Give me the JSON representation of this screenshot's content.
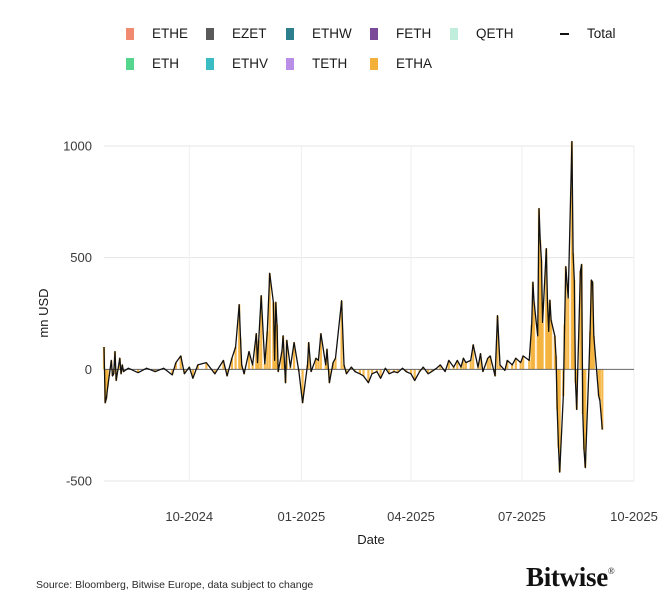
{
  "chart_data": {
    "type": "bar",
    "stacked": true,
    "xlabel": "Date",
    "ylabel": "mn USD",
    "ylim": [
      -500,
      1000
    ],
    "yticks": [
      -500,
      0,
      500,
      1000
    ],
    "ytick_labels": [
      "-500",
      "0",
      "500",
      "1000"
    ],
    "x_range": [
      "2024-07-23",
      "2025-10-01"
    ],
    "xticks": [
      "2024-10-01",
      "2025-01-01",
      "2025-04-01",
      "2025-07-01",
      "2025-10-01"
    ],
    "xtick_labels": [
      "10-2024",
      "01-2025",
      "04-2025",
      "07-2025",
      "10-2025"
    ],
    "grid": true,
    "legend_position": "top",
    "series": [
      {
        "name": "ETHE",
        "color": "#f08a70"
      },
      {
        "name": "EZET",
        "color": "#5a5a5a"
      },
      {
        "name": "ETHW",
        "color": "#2d7f8e"
      },
      {
        "name": "FETH",
        "color": "#7b4b9a"
      },
      {
        "name": "QETH",
        "color": "#bfeedd"
      },
      {
        "name": "ETH",
        "color": "#54d68f"
      },
      {
        "name": "ETHV",
        "color": "#3bbcc4"
      },
      {
        "name": "TETH",
        "color": "#b98ee6"
      },
      {
        "name": "ETHA",
        "color": "#f4b13a"
      },
      {
        "name": "Total",
        "color": "#111111"
      }
    ],
    "total": [
      [
        "2024-07-23",
        100
      ],
      [
        "2024-07-24",
        -150
      ],
      [
        "2024-07-25",
        -130
      ],
      [
        "2024-07-26",
        -80
      ],
      [
        "2024-07-29",
        40
      ],
      [
        "2024-07-30",
        -30
      ],
      [
        "2024-07-31",
        -20
      ],
      [
        "2024-08-01",
        80
      ],
      [
        "2024-08-02",
        -50
      ],
      [
        "2024-08-05",
        50
      ],
      [
        "2024-08-06",
        -20
      ],
      [
        "2024-08-07",
        20
      ],
      [
        "2024-08-08",
        -10
      ],
      [
        "2024-08-12",
        5
      ],
      [
        "2024-08-20",
        -15
      ],
      [
        "2024-08-27",
        5
      ],
      [
        "2024-09-03",
        -10
      ],
      [
        "2024-09-10",
        5
      ],
      [
        "2024-09-17",
        -25
      ],
      [
        "2024-09-20",
        30
      ],
      [
        "2024-09-24",
        60
      ],
      [
        "2024-09-27",
        -20
      ],
      [
        "2024-10-01",
        10
      ],
      [
        "2024-10-04",
        -40
      ],
      [
        "2024-10-08",
        20
      ],
      [
        "2024-10-15",
        30
      ],
      [
        "2024-10-22",
        -20
      ],
      [
        "2024-10-29",
        40
      ],
      [
        "2024-11-01",
        -30
      ],
      [
        "2024-11-05",
        50
      ],
      [
        "2024-11-08",
        100
      ],
      [
        "2024-11-11",
        290
      ],
      [
        "2024-11-12",
        140
      ],
      [
        "2024-11-13",
        20
      ],
      [
        "2024-11-15",
        -20
      ],
      [
        "2024-11-19",
        80
      ],
      [
        "2024-11-22",
        20
      ],
      [
        "2024-11-25",
        160
      ],
      [
        "2024-11-26",
        30
      ],
      [
        "2024-11-27",
        130
      ],
      [
        "2024-11-29",
        330
      ],
      [
        "2024-12-02",
        25
      ],
      [
        "2024-12-04",
        170
      ],
      [
        "2024-12-06",
        430
      ],
      [
        "2024-12-09",
        300
      ],
      [
        "2024-12-10",
        40
      ],
      [
        "2024-12-11",
        300
      ],
      [
        "2024-12-12",
        200
      ],
      [
        "2024-12-13",
        -10
      ],
      [
        "2024-12-16",
        80
      ],
      [
        "2024-12-17",
        150
      ],
      [
        "2024-12-19",
        -60
      ],
      [
        "2024-12-20",
        130
      ],
      [
        "2024-12-23",
        10
      ],
      [
        "2024-12-26",
        120
      ],
      [
        "2024-12-30",
        -10
      ],
      [
        "2025-01-02",
        -150
      ],
      [
        "2025-01-06",
        20
      ],
      [
        "2025-01-07",
        120
      ],
      [
        "2025-01-09",
        -10
      ],
      [
        "2025-01-13",
        50
      ],
      [
        "2025-01-15",
        40
      ],
      [
        "2025-01-17",
        160
      ],
      [
        "2025-01-21",
        20
      ],
      [
        "2025-01-22",
        90
      ],
      [
        "2025-01-24",
        -60
      ],
      [
        "2025-01-27",
        30
      ],
      [
        "2025-01-29",
        50
      ],
      [
        "2025-02-03",
        307
      ],
      [
        "2025-02-05",
        20
      ],
      [
        "2025-02-07",
        -20
      ],
      [
        "2025-02-11",
        10
      ],
      [
        "2025-02-14",
        -10
      ],
      [
        "2025-02-18",
        -20
      ],
      [
        "2025-02-21",
        -30
      ],
      [
        "2025-02-25",
        -60
      ],
      [
        "2025-02-28",
        -20
      ],
      [
        "2025-03-04",
        -10
      ],
      [
        "2025-03-07",
        -40
      ],
      [
        "2025-03-11",
        5
      ],
      [
        "2025-03-14",
        -20
      ],
      [
        "2025-03-18",
        -10
      ],
      [
        "2025-03-21",
        -15
      ],
      [
        "2025-03-25",
        5
      ],
      [
        "2025-03-28",
        -10
      ],
      [
        "2025-04-01",
        -20
      ],
      [
        "2025-04-04",
        -50
      ],
      [
        "2025-04-08",
        -10
      ],
      [
        "2025-04-11",
        10
      ],
      [
        "2025-04-15",
        -20
      ],
      [
        "2025-04-18",
        -10
      ],
      [
        "2025-04-22",
        5
      ],
      [
        "2025-04-25",
        20
      ],
      [
        "2025-04-29",
        -10
      ],
      [
        "2025-05-02",
        40
      ],
      [
        "2025-05-06",
        10
      ],
      [
        "2025-05-09",
        40
      ],
      [
        "2025-05-12",
        10
      ],
      [
        "2025-05-14",
        50
      ],
      [
        "2025-05-16",
        30
      ],
      [
        "2025-05-20",
        40
      ],
      [
        "2025-05-22",
        110
      ],
      [
        "2025-05-26",
        10
      ],
      [
        "2025-05-28",
        70
      ],
      [
        "2025-05-30",
        -10
      ],
      [
        "2025-06-03",
        50
      ],
      [
        "2025-06-05",
        60
      ],
      [
        "2025-06-09",
        -30
      ],
      [
        "2025-06-11",
        240
      ],
      [
        "2025-06-13",
        20
      ],
      [
        "2025-06-17",
        -5
      ],
      [
        "2025-06-19",
        40
      ],
      [
        "2025-06-23",
        20
      ],
      [
        "2025-06-26",
        50
      ],
      [
        "2025-06-30",
        30
      ],
      [
        "2025-07-02",
        60
      ],
      [
        "2025-07-07",
        40
      ],
      [
        "2025-07-09",
        200
      ],
      [
        "2025-07-10",
        390
      ],
      [
        "2025-07-11",
        300
      ],
      [
        "2025-07-14",
        150
      ],
      [
        "2025-07-15",
        720
      ],
      [
        "2025-07-16",
        580
      ],
      [
        "2025-07-17",
        490
      ],
      [
        "2025-07-18",
        210
      ],
      [
        "2025-07-21",
        540
      ],
      [
        "2025-07-22",
        300
      ],
      [
        "2025-07-23",
        170
      ],
      [
        "2025-07-24",
        310
      ],
      [
        "2025-07-25",
        220
      ],
      [
        "2025-07-28",
        150
      ],
      [
        "2025-07-29",
        60
      ],
      [
        "2025-07-30",
        -180
      ],
      [
        "2025-07-31",
        -350
      ],
      [
        "2025-08-01",
        -460
      ],
      [
        "2025-08-04",
        -120
      ],
      [
        "2025-08-05",
        200
      ],
      [
        "2025-08-06",
        460
      ],
      [
        "2025-08-08",
        320
      ],
      [
        "2025-08-11",
        1020
      ],
      [
        "2025-08-12",
        520
      ],
      [
        "2025-08-13",
        400
      ],
      [
        "2025-08-14",
        -60
      ],
      [
        "2025-08-15",
        -180
      ],
      [
        "2025-08-18",
        440
      ],
      [
        "2025-08-19",
        470
      ],
      [
        "2025-08-20",
        -200
      ],
      [
        "2025-08-21",
        -360
      ],
      [
        "2025-08-22",
        -440
      ],
      [
        "2025-08-25",
        0
      ],
      [
        "2025-08-26",
        170
      ],
      [
        "2025-08-27",
        400
      ],
      [
        "2025-08-28",
        390
      ],
      [
        "2025-08-29",
        150
      ],
      [
        "2025-09-02",
        -120
      ],
      [
        "2025-09-03",
        -140
      ],
      [
        "2025-09-05",
        -270
      ]
    ]
  },
  "legend": {
    "items": [
      {
        "label": "ETHE",
        "color": "#f08a70",
        "kind": "swatch"
      },
      {
        "label": "EZET",
        "color": "#5a5a5a",
        "kind": "swatch"
      },
      {
        "label": "ETHW",
        "color": "#2d7f8e",
        "kind": "swatch"
      },
      {
        "label": "FETH",
        "color": "#7b4b9a",
        "kind": "swatch"
      },
      {
        "label": "QETH",
        "color": "#bfeedd",
        "kind": "swatch"
      },
      {
        "label": "Total",
        "color": "#111111",
        "kind": "line"
      },
      {
        "label": "ETH",
        "color": "#54d68f",
        "kind": "swatch"
      },
      {
        "label": "ETHV",
        "color": "#3bbcc4",
        "kind": "swatch"
      },
      {
        "label": "TETH",
        "color": "#b98ee6",
        "kind": "swatch"
      },
      {
        "label": "ETHA",
        "color": "#f4b13a",
        "kind": "swatch"
      }
    ]
  },
  "footer": {
    "source": "Source: Bloomberg, Bitwise Europe, data subject to change",
    "brand": "Bitwise",
    "brand_mark": "®"
  }
}
